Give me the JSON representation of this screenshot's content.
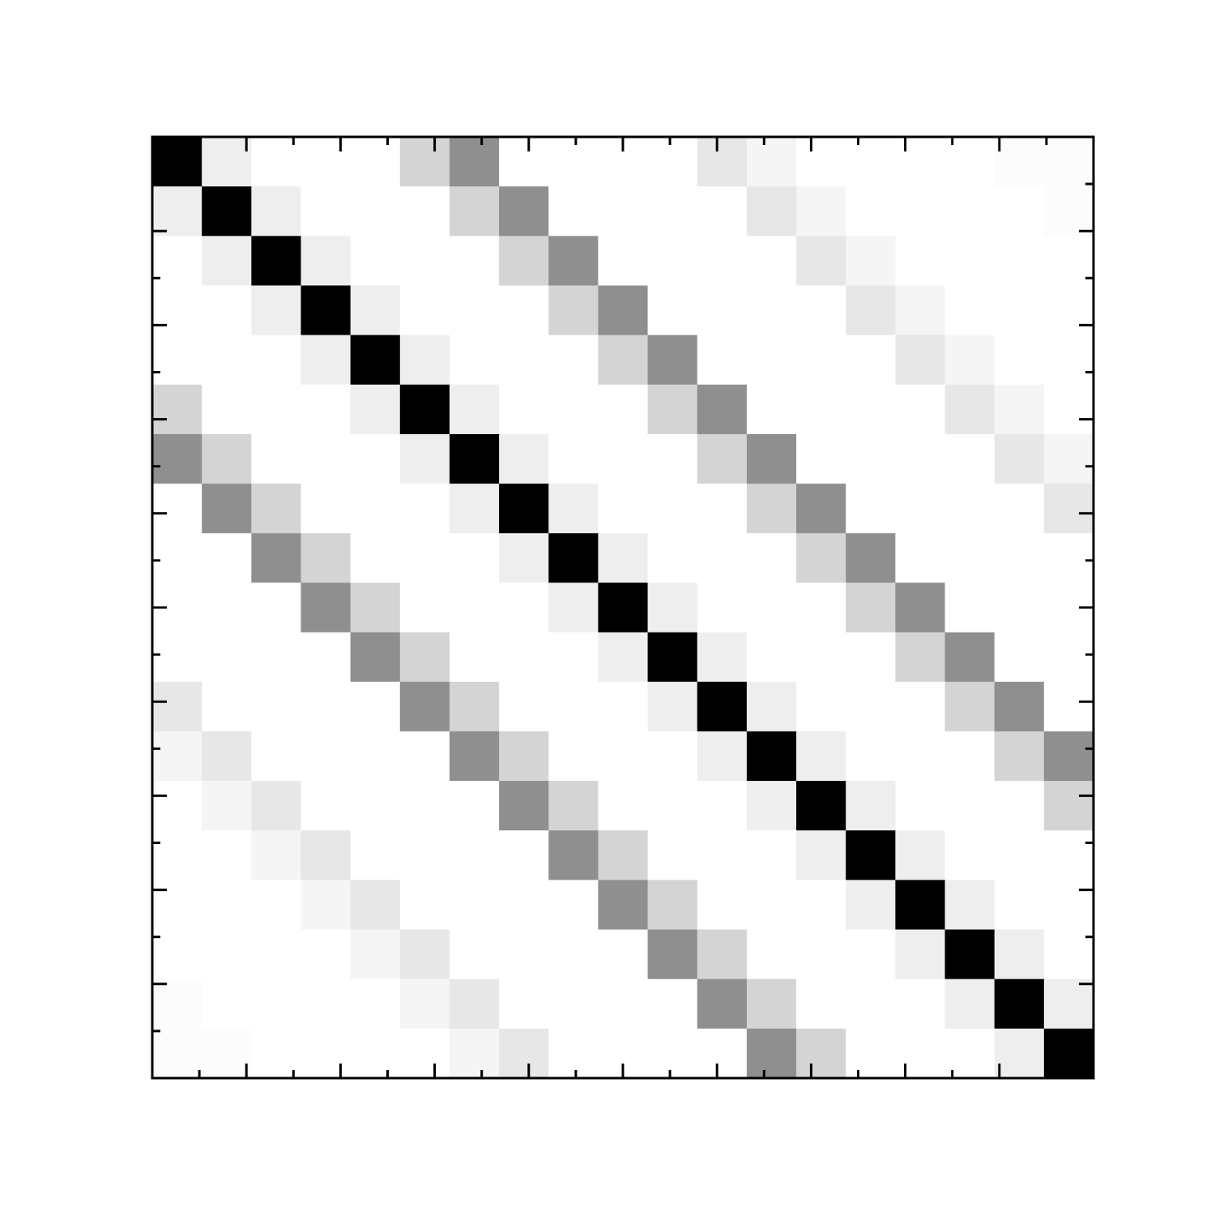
{
  "chart_data": {
    "type": "heatmap",
    "rows": 19,
    "cols": 19,
    "value_range": [
      0,
      1
    ],
    "colormap": "gray_r",
    "grid": false,
    "colorbar": false,
    "x_minor_ticks_per_major": 2,
    "y_minor_ticks_per_major": 2,
    "band_offsets": [
      0,
      1,
      5,
      6,
      11,
      12,
      17,
      18
    ],
    "band_values": [
      1.0,
      0.065,
      0.17,
      0.44,
      0.095,
      0.04,
      0.012,
      0.012
    ]
  }
}
